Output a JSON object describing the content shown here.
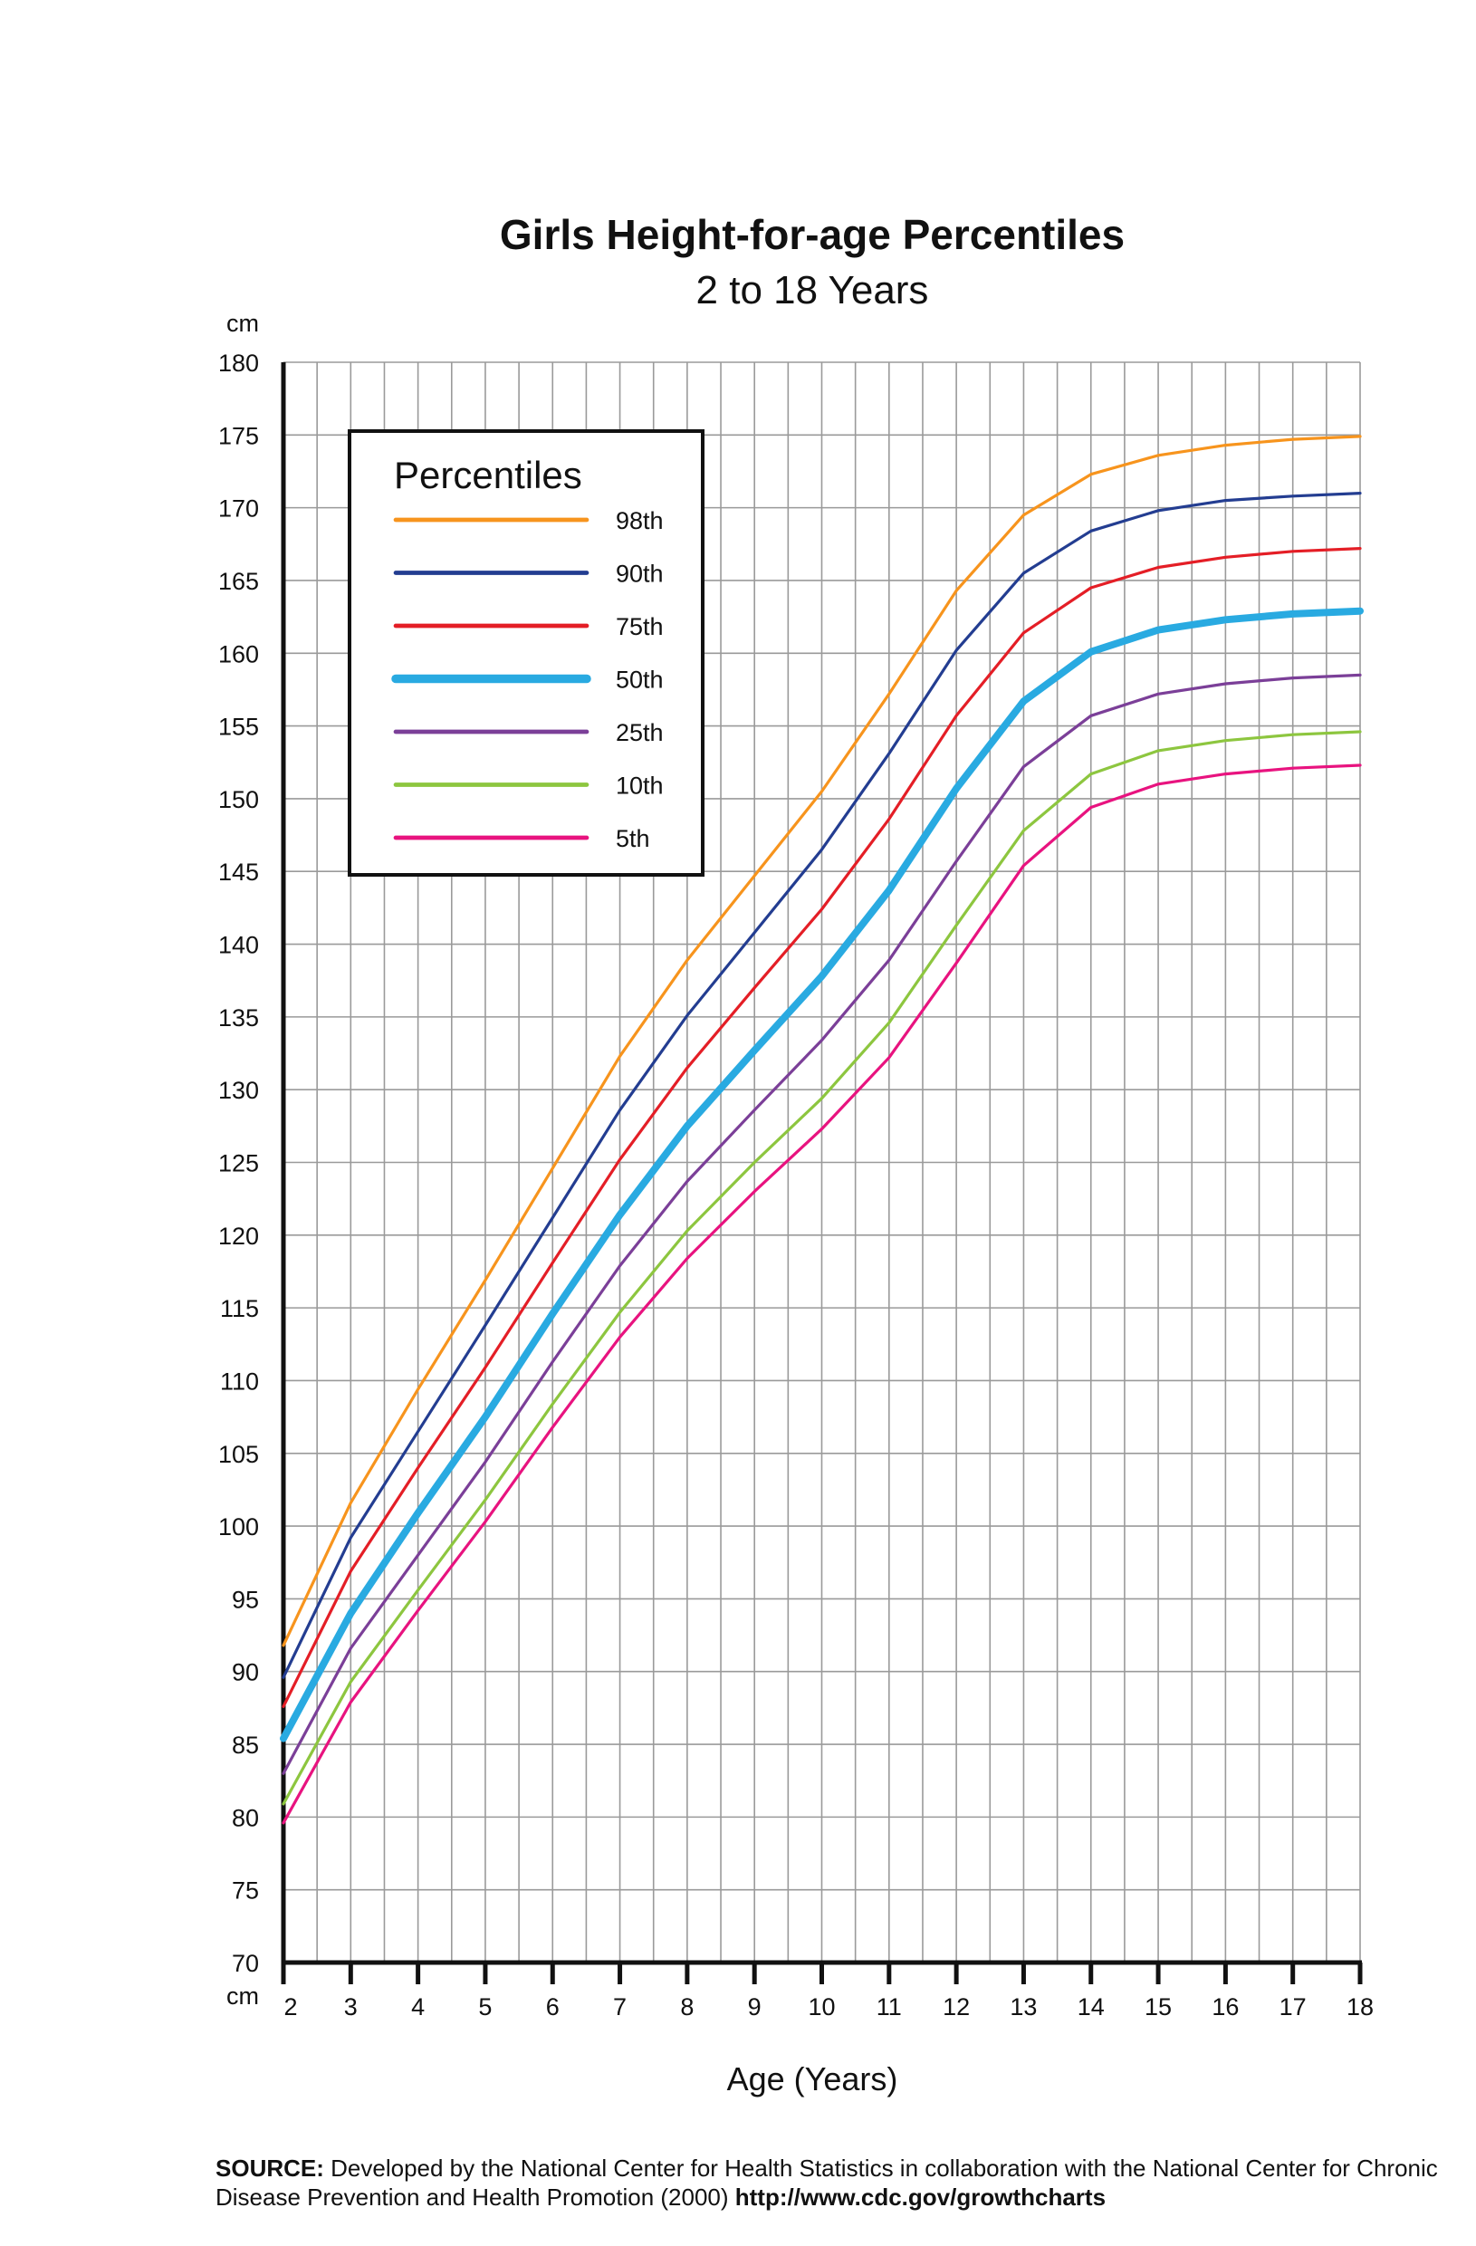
{
  "chart_data": {
    "type": "line",
    "title": "Girls Height-for-age Percentiles",
    "subtitle": "2 to 18 Years",
    "xlabel": "Age (Years)",
    "ylabel_unit": "cm",
    "x": [
      2,
      3,
      4,
      5,
      6,
      7,
      8,
      9,
      10,
      11,
      12,
      13,
      14,
      15,
      16,
      17,
      18
    ],
    "x_ticks": [
      2,
      3,
      4,
      5,
      6,
      7,
      8,
      9,
      10,
      11,
      12,
      13,
      14,
      15,
      16,
      17,
      18
    ],
    "xlim": [
      2,
      18
    ],
    "ylim": [
      70,
      180
    ],
    "y_ticks": [
      70,
      75,
      80,
      85,
      90,
      95,
      100,
      105,
      110,
      115,
      120,
      125,
      130,
      135,
      140,
      145,
      150,
      155,
      160,
      165,
      170,
      175,
      180
    ],
    "grid": true,
    "legend_title": "Percentiles",
    "legend_position": "top-left",
    "series": [
      {
        "name": "98th",
        "color": "#f7941d",
        "width": 2,
        "values": [
          91.8,
          101.6,
          109.4,
          116.9,
          124.6,
          132.3,
          138.9,
          144.7,
          150.5,
          157.2,
          164.3,
          169.5,
          172.3,
          173.6,
          174.3,
          174.7,
          174.9
        ]
      },
      {
        "name": "90th",
        "color": "#233d91",
        "width": 2,
        "values": [
          89.6,
          99.2,
          106.5,
          113.8,
          121.2,
          128.6,
          135.1,
          140.8,
          146.5,
          153.1,
          160.2,
          165.5,
          168.4,
          169.8,
          170.5,
          170.8,
          171.0
        ]
      },
      {
        "name": "75th",
        "color": "#e41e26",
        "width": 2,
        "values": [
          87.6,
          96.9,
          104.0,
          110.9,
          118.1,
          125.2,
          131.5,
          137.0,
          142.4,
          148.6,
          155.7,
          161.4,
          164.5,
          165.9,
          166.6,
          167.0,
          167.2
        ]
      },
      {
        "name": "50th",
        "color": "#29aae1",
        "width": 5,
        "values": [
          85.4,
          94.0,
          100.9,
          107.5,
          114.6,
          121.4,
          127.5,
          132.7,
          137.8,
          143.7,
          150.7,
          156.7,
          160.1,
          161.6,
          162.3,
          162.7,
          162.9
        ]
      },
      {
        "name": "25th",
        "color": "#7b3f98",
        "width": 2,
        "values": [
          83.0,
          91.6,
          98.0,
          104.4,
          111.3,
          117.9,
          123.7,
          128.6,
          133.4,
          138.9,
          145.7,
          152.2,
          155.7,
          157.2,
          157.9,
          158.3,
          158.5
        ]
      },
      {
        "name": "10th",
        "color": "#8dc63f",
        "width": 2,
        "values": [
          80.9,
          89.3,
          95.6,
          101.8,
          108.4,
          114.7,
          120.3,
          125.0,
          129.4,
          134.6,
          141.3,
          147.8,
          151.7,
          153.3,
          154.0,
          154.4,
          154.6
        ]
      },
      {
        "name": "5th",
        "color": "#e8137f",
        "width": 2,
        "values": [
          79.6,
          87.9,
          94.2,
          100.3,
          106.8,
          113.0,
          118.4,
          123.0,
          127.3,
          132.2,
          138.7,
          145.4,
          149.4,
          151.0,
          151.7,
          152.1,
          152.3
        ]
      }
    ]
  },
  "source": {
    "label": "SOURCE:",
    "text": " Developed by the National Center for Health Statistics in collaboration with the National Center for Chronic Disease Prevention and Health Promotion (2000) ",
    "url": "http://www.cdc.gov/growthcharts"
  }
}
